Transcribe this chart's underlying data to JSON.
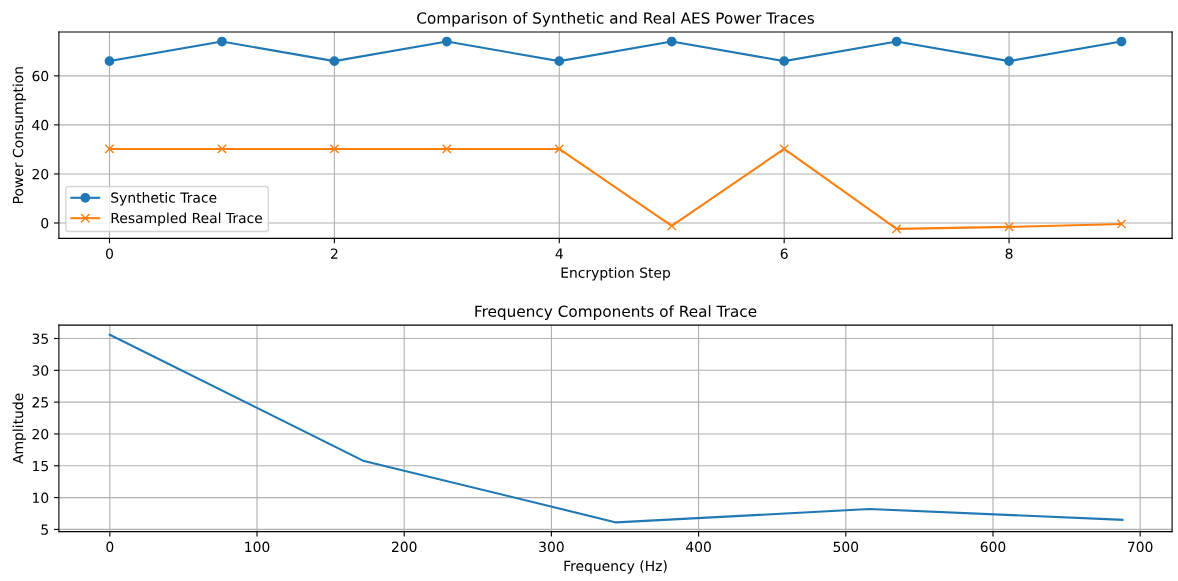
{
  "chart_data": [
    {
      "type": "line",
      "title": "Comparison of Synthetic and Real AES Power Traces",
      "xlabel": "Encryption Step",
      "ylabel": "Power Consumption",
      "x": [
        0,
        1,
        2,
        3,
        4,
        5,
        6,
        7,
        8,
        9
      ],
      "series": [
        {
          "name": "Synthetic Trace",
          "color": "#1f77b4",
          "marker": "circle",
          "values": [
            66,
            74,
            66,
            74,
            66,
            74,
            66,
            74,
            66,
            74
          ]
        },
        {
          "name": "Resampled Real Trace",
          "color": "#ff7f0e",
          "marker": "cross",
          "values": [
            30.2,
            30.2,
            30.2,
            30.2,
            30.2,
            -1.2,
            30.2,
            -2.4,
            -1.6,
            -0.4
          ]
        }
      ],
      "xlim": [
        -0.45,
        9.45
      ],
      "ylim": [
        -6.3,
        77.9
      ],
      "xticks": [
        0,
        2,
        4,
        6,
        8
      ],
      "yticks": [
        0,
        20,
        40,
        60
      ],
      "grid": true,
      "legend": "bottom left"
    },
    {
      "type": "line",
      "title": "Frequency Components of Real Trace",
      "xlabel": "Frequency (Hz)",
      "ylabel": "Amplitude",
      "x": [
        0,
        172,
        344,
        516,
        688
      ],
      "series": [
        {
          "color": "#1f77b4",
          "values": [
            35.6,
            15.8,
            6.1,
            8.2,
            6.5
          ]
        }
      ],
      "xlim": [
        -34.6,
        721.7
      ],
      "ylim": [
        4.65,
        37.1
      ],
      "xticks": [
        0,
        100,
        200,
        300,
        400,
        500,
        600,
        700
      ],
      "yticks": [
        5,
        10,
        15,
        20,
        25,
        30,
        35
      ],
      "grid": true
    }
  ]
}
